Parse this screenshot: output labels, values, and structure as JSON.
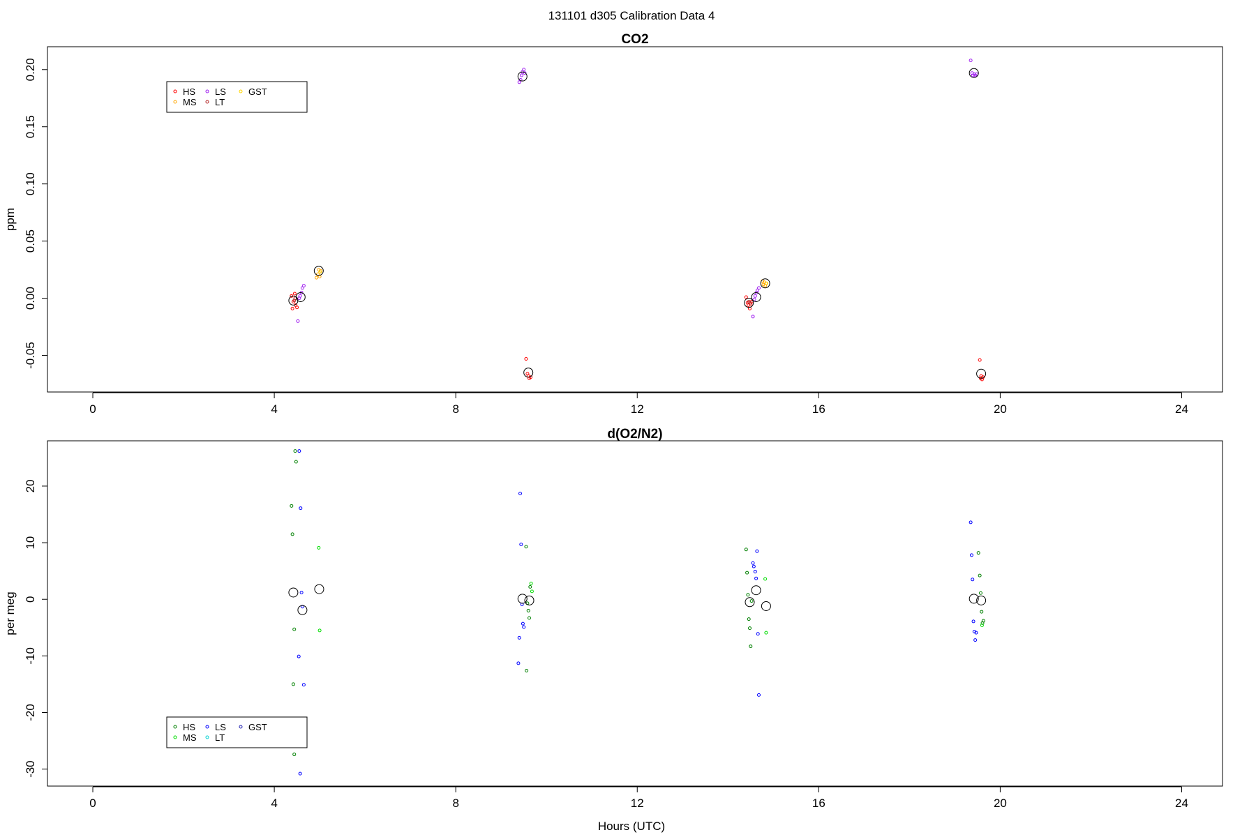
{
  "figure": {
    "title": "131101   d305   Calibration Data 4",
    "xlabel": "Hours (UTC)"
  },
  "chart_data": [
    {
      "type": "scatter",
      "title": "CO2",
      "ylabel": "ppm",
      "xlabel": "",
      "xlim": [
        -1.0,
        24.9
      ],
      "ylim": [
        -0.082,
        0.22
      ],
      "x_ticks": [
        0,
        4,
        8,
        12,
        16,
        20,
        24
      ],
      "y_ticks": [
        -0.05,
        0.0,
        0.05,
        0.1,
        0.15,
        0.2
      ],
      "y_tick_labels": [
        "-0.05",
        "0.00",
        "0.05",
        "0.10",
        "0.15",
        "0.20"
      ],
      "legend": {
        "position": "top-left",
        "entries": [
          {
            "label": "HS",
            "color": "#ff0000"
          },
          {
            "label": "MS",
            "color": "#ffa500"
          },
          {
            "label": "LS",
            "color": "#a020f0"
          },
          {
            "label": "LT",
            "color": "#b22222"
          },
          {
            "label": "GST",
            "color": "#ffd700"
          }
        ]
      },
      "series": [
        {
          "name": "HS",
          "color": "#ff0000",
          "points": [
            [
              4.4,
              -0.009
            ],
            [
              4.42,
              -0.003
            ],
            [
              4.45,
              0.004
            ],
            [
              4.47,
              -0.006
            ],
            [
              4.5,
              -0.008
            ],
            [
              4.38,
              0.002
            ],
            [
              9.55,
              -0.053
            ],
            [
              9.58,
              -0.066
            ],
            [
              9.6,
              -0.068
            ],
            [
              9.62,
              -0.07
            ],
            [
              9.65,
              -0.069
            ],
            [
              14.4,
              0.001
            ],
            [
              14.43,
              -0.004
            ],
            [
              14.45,
              -0.006
            ],
            [
              14.48,
              -0.009
            ],
            [
              14.5,
              -0.005
            ],
            [
              14.52,
              -0.003
            ],
            [
              19.55,
              -0.054
            ],
            [
              19.57,
              -0.07
            ],
            [
              19.6,
              -0.071
            ],
            [
              19.62,
              -0.069
            ],
            [
              19.58,
              -0.068
            ]
          ]
        },
        {
          "name": "MS",
          "color": "#ffa500",
          "points": [
            [
              4.93,
              0.018
            ],
            [
              4.96,
              0.021
            ],
            [
              4.98,
              0.025
            ],
            [
              5.0,
              0.019
            ],
            [
              5.02,
              0.024
            ],
            [
              14.78,
              0.012
            ],
            [
              14.8,
              0.014
            ],
            [
              14.82,
              0.011
            ],
            [
              14.84,
              0.013
            ],
            [
              14.76,
              0.015
            ]
          ]
        },
        {
          "name": "LS",
          "color": "#a020f0",
          "points": [
            [
              4.52,
              -0.02
            ],
            [
              4.55,
              0.0
            ],
            [
              4.57,
              0.002
            ],
            [
              4.6,
              0.005
            ],
            [
              4.62,
              0.009
            ],
            [
              4.65,
              0.011
            ],
            [
              9.4,
              0.189
            ],
            [
              9.43,
              0.191
            ],
            [
              9.45,
              0.195
            ],
            [
              9.47,
              0.198
            ],
            [
              9.5,
              0.2
            ],
            [
              9.52,
              0.197
            ],
            [
              14.55,
              -0.016
            ],
            [
              14.58,
              -0.001
            ],
            [
              14.6,
              0.002
            ],
            [
              14.63,
              0.005
            ],
            [
              14.65,
              0.007
            ],
            [
              14.68,
              0.009
            ],
            [
              19.35,
              0.208
            ],
            [
              19.38,
              0.197
            ],
            [
              19.4,
              0.195
            ],
            [
              19.43,
              0.196
            ],
            [
              19.45,
              0.195
            ],
            [
              19.48,
              0.196
            ]
          ]
        },
        {
          "name": "LT",
          "color": "#b22222",
          "points": [
            [
              4.44,
              -0.002
            ],
            [
              4.46,
              0.0
            ],
            [
              14.46,
              -0.003
            ],
            [
              14.49,
              -0.004
            ]
          ]
        },
        {
          "name": "GST",
          "color": "#ffd700",
          "points": [
            [
              5.01,
              0.023
            ],
            [
              14.85,
              0.013
            ]
          ]
        },
        {
          "name": "Mean",
          "color": "#000000",
          "points": [
            [
              4.42,
              -0.002
            ],
            [
              4.58,
              0.001
            ],
            [
              4.98,
              0.024
            ],
            [
              9.47,
              0.194
            ],
            [
              9.6,
              -0.065
            ],
            [
              14.46,
              -0.004
            ],
            [
              14.62,
              0.001
            ],
            [
              14.82,
              0.013
            ],
            [
              19.42,
              0.197
            ],
            [
              19.58,
              -0.066
            ]
          ]
        }
      ]
    },
    {
      "type": "scatter",
      "title": "d(O2/N2)",
      "ylabel": "per meg",
      "xlabel": "Hours (UTC)",
      "xlim": [
        -1.0,
        24.9
      ],
      "ylim": [
        -33,
        28
      ],
      "x_ticks": [
        0,
        4,
        8,
        12,
        16,
        20,
        24
      ],
      "y_ticks": [
        -30,
        -20,
        -10,
        0,
        10,
        20
      ],
      "y_tick_labels": [
        "-30",
        "-20",
        "-10",
        "0",
        "10",
        "20"
      ],
      "legend": {
        "position": "bottom-left",
        "entries": [
          {
            "label": "HS",
            "color": "#008000"
          },
          {
            "label": "MS",
            "color": "#00dd00"
          },
          {
            "label": "LS",
            "color": "#0000ff"
          },
          {
            "label": "LT",
            "color": "#00d0d0"
          },
          {
            "label": "GST",
            "color": "#2020b0"
          }
        ]
      },
      "series": [
        {
          "name": "HS",
          "color": "#008000",
          "points": [
            [
              4.38,
              16.5
            ],
            [
              4.4,
              11.5
            ],
            [
              4.42,
              -15.0
            ],
            [
              4.44,
              -5.3
            ],
            [
              4.46,
              26.2
            ],
            [
              4.48,
              24.3
            ],
            [
              4.44,
              -27.4
            ],
            [
              9.55,
              9.3
            ],
            [
              9.58,
              -0.7
            ],
            [
              9.6,
              -2.0
            ],
            [
              9.62,
              -3.3
            ],
            [
              9.64,
              2.2
            ],
            [
              9.56,
              -12.6
            ],
            [
              14.4,
              8.8
            ],
            [
              14.42,
              4.7
            ],
            [
              14.44,
              0.8
            ],
            [
              14.46,
              -3.5
            ],
            [
              14.48,
              -5.1
            ],
            [
              14.5,
              -8.3
            ],
            [
              14.52,
              -0.3
            ],
            [
              19.52,
              8.2
            ],
            [
              19.55,
              4.2
            ],
            [
              19.57,
              1.1
            ],
            [
              19.59,
              -2.2
            ],
            [
              19.61,
              -4.2
            ],
            [
              19.63,
              -3.8
            ]
          ]
        },
        {
          "name": "MS",
          "color": "#00dd00",
          "points": [
            [
              4.98,
              9.1
            ],
            [
              5.0,
              -5.5
            ],
            [
              9.66,
              2.8
            ],
            [
              9.68,
              1.4
            ],
            [
              14.82,
              3.6
            ],
            [
              14.84,
              -5.9
            ],
            [
              19.6,
              -4.6
            ]
          ]
        },
        {
          "name": "LS",
          "color": "#0000ff",
          "points": [
            [
              4.55,
              26.2
            ],
            [
              4.58,
              16.1
            ],
            [
              4.6,
              1.2
            ],
            [
              4.62,
              -1.3
            ],
            [
              4.54,
              -10.1
            ],
            [
              4.65,
              -15.1
            ],
            [
              4.57,
              -30.8
            ],
            [
              9.42,
              18.7
            ],
            [
              9.44,
              9.7
            ],
            [
              9.46,
              -0.9
            ],
            [
              9.48,
              -4.3
            ],
            [
              9.5,
              -4.9
            ],
            [
              9.4,
              -6.8
            ],
            [
              9.38,
              -11.3
            ],
            [
              14.55,
              6.4
            ],
            [
              14.57,
              5.8
            ],
            [
              14.6,
              4.9
            ],
            [
              14.62,
              3.7
            ],
            [
              14.64,
              8.5
            ],
            [
              14.66,
              -6.1
            ],
            [
              14.68,
              -16.9
            ],
            [
              19.35,
              13.6
            ],
            [
              19.37,
              7.8
            ],
            [
              19.39,
              3.5
            ],
            [
              19.41,
              -3.9
            ],
            [
              19.43,
              -5.7
            ],
            [
              19.45,
              -7.2
            ],
            [
              19.47,
              -5.9
            ]
          ]
        },
        {
          "name": "LT",
          "color": "#00d0d0",
          "points": []
        },
        {
          "name": "GST",
          "color": "#2020b0",
          "points": []
        },
        {
          "name": "Mean",
          "color": "#000000",
          "points": [
            [
              4.42,
              1.2
            ],
            [
              4.62,
              -1.9
            ],
            [
              4.99,
              1.8
            ],
            [
              9.47,
              0.1
            ],
            [
              9.62,
              -0.2
            ],
            [
              14.48,
              -0.5
            ],
            [
              14.62,
              1.6
            ],
            [
              14.84,
              -1.2
            ],
            [
              19.42,
              0.1
            ],
            [
              19.58,
              -0.2
            ]
          ]
        }
      ]
    }
  ]
}
